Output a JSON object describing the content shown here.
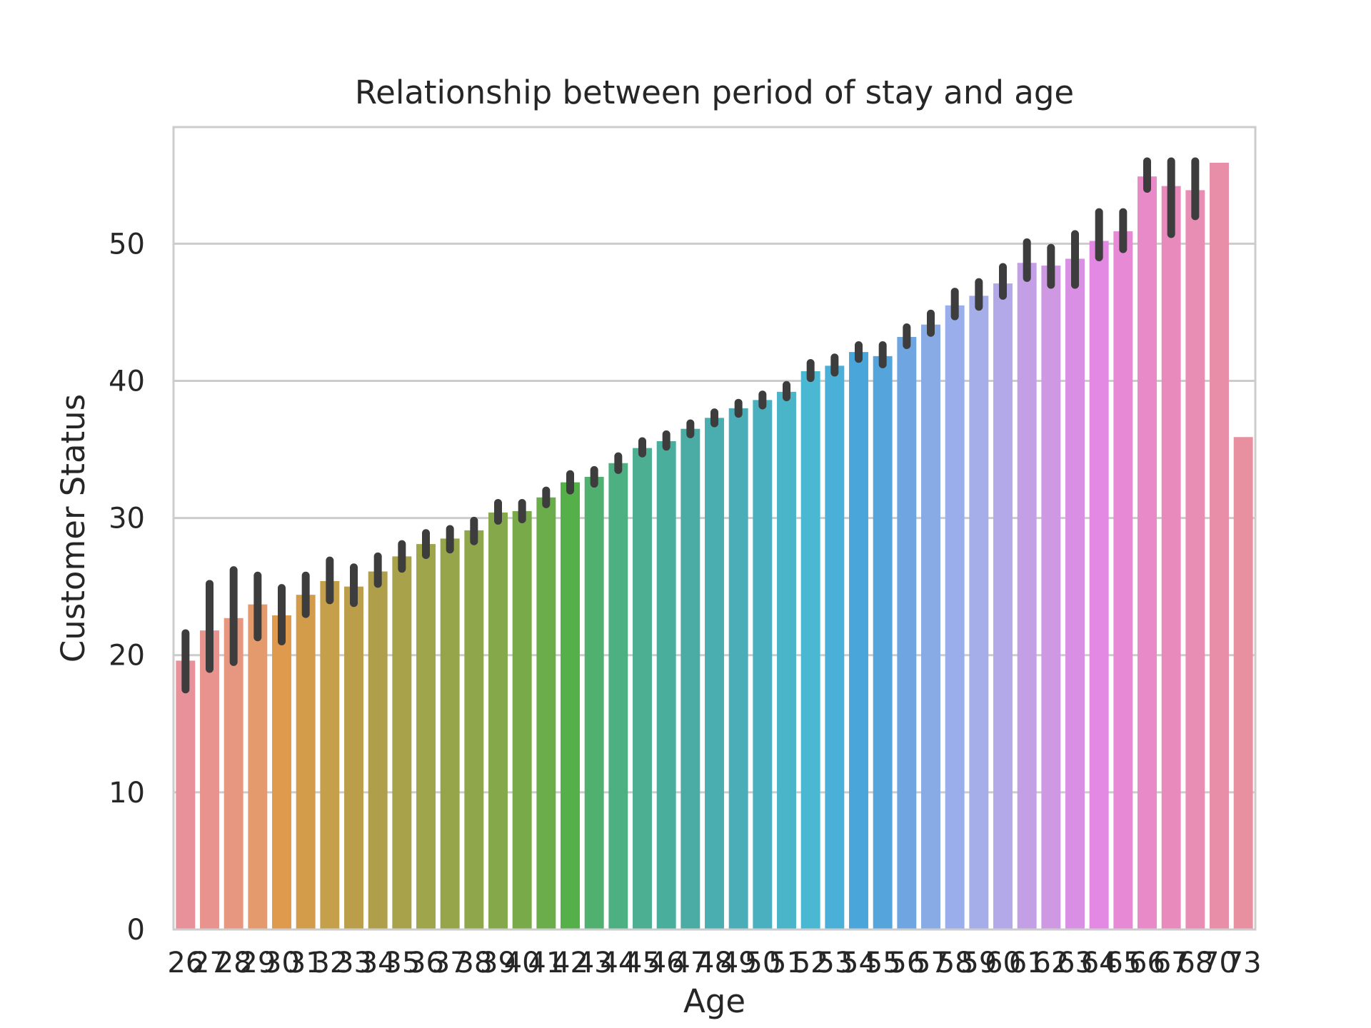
{
  "chart_data": {
    "type": "bar",
    "title": "Relationship between period of stay and age",
    "xlabel": "Age",
    "ylabel": "Customer Status",
    "ylim": [
      0,
      58.5
    ],
    "yticks": [
      0,
      10,
      20,
      30,
      40,
      50
    ],
    "grid": "horizontal",
    "categories": [
      "26",
      "27",
      "28",
      "29",
      "30",
      "31",
      "32",
      "33",
      "34",
      "35",
      "36",
      "37",
      "38",
      "39",
      "40",
      "41",
      "42",
      "43",
      "44",
      "45",
      "46",
      "47",
      "48",
      "49",
      "50",
      "51",
      "52",
      "53",
      "54",
      "55",
      "56",
      "57",
      "58",
      "59",
      "60",
      "61",
      "62",
      "63",
      "64",
      "65",
      "66",
      "67",
      "68",
      "70",
      "73"
    ],
    "values": [
      19.6,
      21.8,
      22.7,
      23.7,
      22.9,
      24.4,
      25.4,
      25.0,
      26.1,
      27.2,
      28.1,
      28.5,
      29.1,
      30.4,
      30.5,
      31.5,
      32.6,
      33.0,
      34.0,
      35.1,
      35.6,
      36.5,
      37.3,
      38.0,
      38.6,
      39.2,
      40.7,
      41.1,
      42.1,
      41.8,
      43.2,
      44.1,
      45.5,
      46.2,
      47.1,
      48.6,
      48.4,
      48.9,
      50.2,
      50.9,
      54.9,
      54.2,
      53.9,
      55.9,
      35.9
    ],
    "error_low": [
      17.5,
      19.0,
      19.5,
      21.3,
      21.0,
      23.0,
      24.0,
      23.8,
      25.2,
      26.3,
      27.3,
      27.7,
      28.3,
      29.8,
      29.9,
      31.0,
      32.0,
      32.5,
      33.5,
      34.7,
      35.2,
      36.1,
      36.9,
      37.6,
      38.2,
      38.8,
      40.2,
      40.6,
      41.6,
      41.2,
      42.6,
      43.5,
      44.7,
      45.4,
      46.2,
      47.5,
      47.0,
      47.0,
      49.0,
      49.6,
      54.0,
      50.7,
      52.0,
      null,
      null
    ],
    "error_high": [
      21.6,
      25.2,
      26.2,
      25.8,
      24.9,
      25.8,
      26.9,
      26.4,
      27.2,
      28.1,
      28.9,
      29.2,
      29.8,
      31.1,
      31.1,
      32.0,
      33.2,
      33.5,
      34.5,
      35.6,
      36.1,
      36.9,
      37.7,
      38.4,
      39.0,
      39.7,
      41.3,
      41.7,
      42.6,
      42.6,
      43.9,
      44.9,
      46.5,
      47.2,
      48.3,
      50.1,
      49.7,
      50.7,
      52.3,
      52.3,
      56.0,
      56.0,
      56.0,
      null,
      null
    ],
    "colors": [
      "#e8919a",
      "#e8938d",
      "#e7967f",
      "#e59a6e",
      "#df9a4e",
      "#d29c4b",
      "#c69f4a",
      "#bb9e4a",
      "#b09f4a",
      "#a8a24a",
      "#9ea54a",
      "#96a54a",
      "#90a64a",
      "#85a84a",
      "#79aa4a",
      "#6aad4a",
      "#55b04a",
      "#4fb070",
      "#4cb082",
      "#4caf92",
      "#4aae9c",
      "#4aaca5",
      "#4aadaf",
      "#4aadb8",
      "#4ab0c0",
      "#4ab5c8",
      "#4ab8d2",
      "#4ab0d8",
      "#4aa6da",
      "#55a5dc",
      "#6fa5e0",
      "#88aae5",
      "#99aeea",
      "#a6aeea",
      "#b4a9e8",
      "#c3a0e5",
      "#cf98e3",
      "#d98fe3",
      "#e388e3",
      "#e789d5",
      "#e88ac7",
      "#e88bbc",
      "#e88db3",
      "#e88ea8",
      "#e8909f"
    ]
  }
}
